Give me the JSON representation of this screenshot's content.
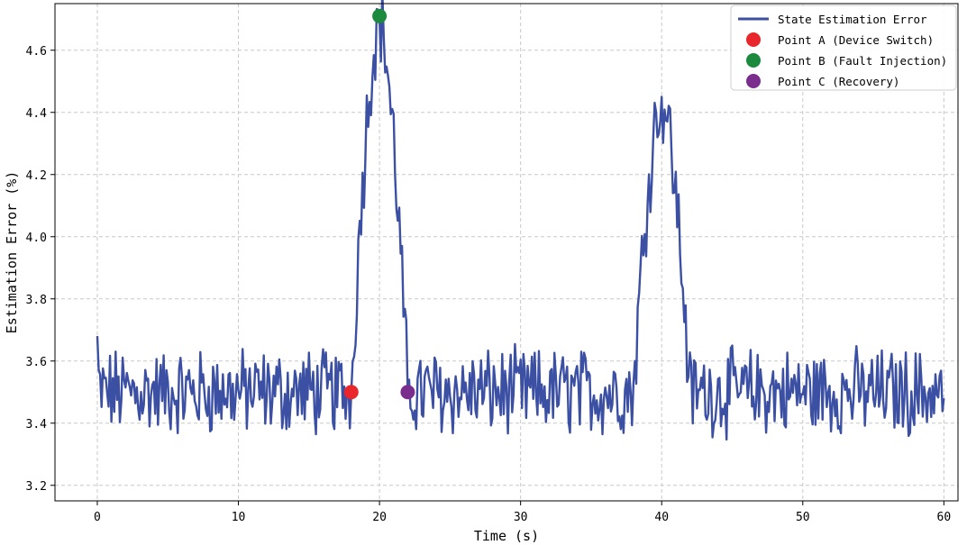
{
  "chart_data": {
    "type": "line",
    "title": "",
    "xlabel": "Time (s)",
    "ylabel": "Estimation Error (%)",
    "xlim": [
      -3,
      61
    ],
    "ylim": [
      3.15,
      4.75
    ],
    "xticks": [
      0,
      10,
      20,
      30,
      40,
      50,
      60
    ],
    "yticks": [
      3.2,
      3.4,
      3.6,
      3.8,
      4.0,
      4.2,
      4.4,
      4.6
    ],
    "xtick_labels": [
      "0",
      "10",
      "20",
      "30",
      "40",
      "50",
      "60"
    ],
    "ytick_labels": [
      "3.2",
      "3.4",
      "3.6",
      "3.8",
      "4.0",
      "4.2",
      "4.4",
      "4.6"
    ],
    "grid": true,
    "legend_position": "top-right",
    "series": [
      {
        "name": "State Estimation Error",
        "color": "#3b4fa3",
        "sample_interval": 0.1,
        "baseline": 3.5,
        "noise_amplitude": 0.12,
        "peaks": [
          {
            "x": 20.0,
            "value": 4.7
          },
          {
            "x": 40.0,
            "value": 4.45
          }
        ],
        "x": [
          0,
          18.0,
          20.0,
          22.0,
          40.0,
          60.0
        ],
        "y": [
          3.68,
          3.5,
          4.7,
          3.5,
          4.45,
          3.48
        ]
      }
    ],
    "points": [
      {
        "name": "Point A (Device Switch)",
        "x": 18.0,
        "y": 3.5,
        "color": "#e8262b"
      },
      {
        "name": "Point B (Fault Injection)",
        "x": 20.0,
        "y": 4.71,
        "color": "#1c8a3c"
      },
      {
        "name": "Point C (Recovery)",
        "x": 22.0,
        "y": 3.5,
        "color": "#7b2d8e"
      }
    ],
    "legend": [
      {
        "label": "State Estimation Error",
        "kind": "line",
        "color": "#3b4fa3"
      },
      {
        "label": "Point A (Device Switch)",
        "kind": "dot",
        "color": "#e8262b"
      },
      {
        "label": "Point B (Fault Injection)",
        "kind": "dot",
        "color": "#1c8a3c"
      },
      {
        "label": "Point C (Recovery)",
        "kind": "dot",
        "color": "#7b2d8e"
      }
    ]
  }
}
